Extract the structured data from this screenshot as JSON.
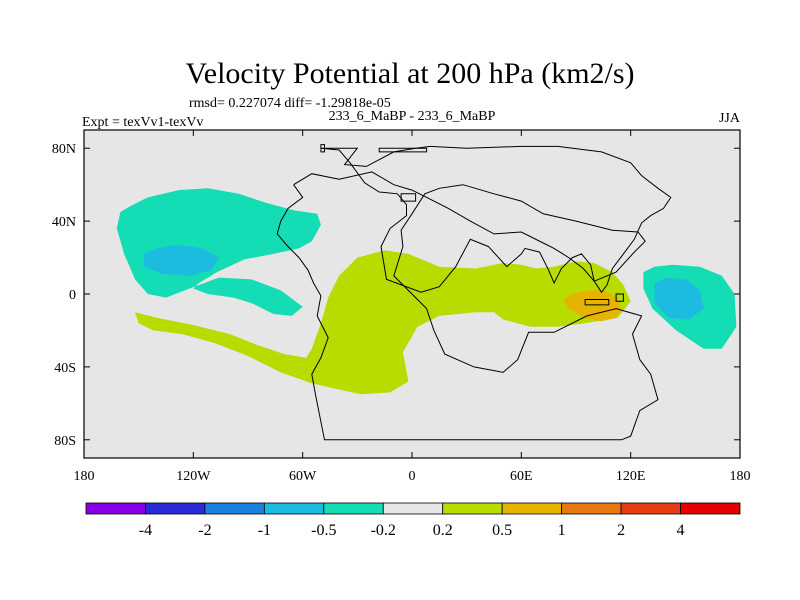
{
  "chart_data": {
    "type": "heatmap",
    "title": "Velocity Potential at 200 hPa (km2/s)",
    "stats_line": "rmsd= 0.227074 diff= -1.29818e-05",
    "left_label": "Expt = texVv1-texVv",
    "center_label": "233_6_MaBP - 233_6_MaBP",
    "right_label": "JJA",
    "x_ticks": [
      {
        "lon": -180,
        "label": "180"
      },
      {
        "lon": -120,
        "label": "120W"
      },
      {
        "lon": -60,
        "label": "60W"
      },
      {
        "lon": 0,
        "label": "0"
      },
      {
        "lon": 60,
        "label": "60E"
      },
      {
        "lon": 120,
        "label": "120E"
      },
      {
        "lon": 180,
        "label": "180"
      }
    ],
    "y_ticks": [
      {
        "lat": 80,
        "label": "80N"
      },
      {
        "lat": 40,
        "label": "40N"
      },
      {
        "lat": 0,
        "label": "0"
      },
      {
        "lat": -40,
        "label": "40S"
      },
      {
        "lat": -80,
        "label": "80S"
      }
    ],
    "xlim": [
      -180,
      180
    ],
    "ylim": [
      -90,
      90
    ],
    "background_color": "#e6e6e6",
    "contour_levels": [
      "-4",
      "-2",
      "-1",
      "-0.5",
      "-0.2",
      "0.2",
      "0.5",
      "1",
      "2",
      "4"
    ],
    "colorbar_colors": [
      "#8a00e6",
      "#2a2ad6",
      "#1c80e0",
      "#1cbce0",
      "#14dcb4",
      "#e6e6e6",
      "#b8dc00",
      "#e6b400",
      "#e67814",
      "#e63c14",
      "#e60000"
    ],
    "regions": [
      {
        "name": "positive-band-main",
        "value_range": "0.2 to 0.5",
        "color": "#b8dc00",
        "points": [
          [
            -152,
            -10
          ],
          [
            -140,
            -13
          ],
          [
            -120,
            -17
          ],
          [
            -100,
            -22
          ],
          [
            -85,
            -28
          ],
          [
            -70,
            -33
          ],
          [
            -58,
            -35
          ],
          [
            -55,
            -30
          ],
          [
            -50,
            -16
          ],
          [
            -46,
            -2
          ],
          [
            -40,
            10
          ],
          [
            -30,
            20
          ],
          [
            -15,
            24
          ],
          [
            -2,
            22
          ],
          [
            15,
            15
          ],
          [
            35,
            14
          ],
          [
            50,
            17
          ],
          [
            60,
            16
          ],
          [
            68,
            14
          ],
          [
            78,
            15
          ],
          [
            90,
            18
          ],
          [
            100,
            17
          ],
          [
            110,
            12
          ],
          [
            116,
            5
          ],
          [
            120,
            -4
          ],
          [
            113,
            -13
          ],
          [
            95,
            -16
          ],
          [
            80,
            -18
          ],
          [
            65,
            -18
          ],
          [
            50,
            -14
          ],
          [
            45,
            -10
          ],
          [
            35,
            -10
          ],
          [
            15,
            -12
          ],
          [
            3,
            -18
          ],
          [
            -5,
            -32
          ],
          [
            -2,
            -48
          ],
          [
            -12,
            -54
          ],
          [
            -28,
            -55
          ],
          [
            -42,
            -52
          ],
          [
            -55,
            -49
          ],
          [
            -72,
            -43
          ],
          [
            -90,
            -34
          ],
          [
            -108,
            -27
          ],
          [
            -126,
            -22
          ],
          [
            -142,
            -20
          ],
          [
            -150,
            -16
          ]
        ]
      },
      {
        "name": "positive-core-east",
        "value_range": "0.5 to 1",
        "color": "#e6b400",
        "points": [
          [
            83,
            -3
          ],
          [
            88,
            0
          ],
          [
            96,
            2
          ],
          [
            105,
            2
          ],
          [
            113,
            -2
          ],
          [
            115,
            -8
          ],
          [
            112,
            -13
          ],
          [
            104,
            -15
          ],
          [
            94,
            -13
          ],
          [
            86,
            -8
          ]
        ]
      },
      {
        "name": "negative-region-west",
        "value_range": "-0.5 to -0.2",
        "color": "#14dcb4",
        "points": [
          [
            -155,
            48
          ],
          [
            -145,
            53
          ],
          [
            -128,
            57
          ],
          [
            -112,
            58
          ],
          [
            -95,
            55
          ],
          [
            -80,
            50
          ],
          [
            -65,
            46
          ],
          [
            -52,
            44
          ],
          [
            -50,
            38
          ],
          [
            -55,
            29
          ],
          [
            -62,
            25
          ],
          [
            -76,
            22
          ],
          [
            -92,
            19
          ],
          [
            -107,
            12
          ],
          [
            -117,
            6
          ],
          [
            -120,
            3
          ],
          [
            -112,
            0
          ],
          [
            -98,
            -2
          ],
          [
            -88,
            -5
          ],
          [
            -76,
            -11
          ],
          [
            -66,
            -12
          ],
          [
            -60,
            -7
          ],
          [
            -72,
            2
          ],
          [
            -88,
            8
          ],
          [
            -106,
            9
          ],
          [
            -122,
            3
          ],
          [
            -135,
            -2
          ],
          [
            -145,
            0
          ],
          [
            -152,
            8
          ],
          [
            -158,
            22
          ],
          [
            -162,
            36
          ],
          [
            -160,
            45
          ]
        ]
      },
      {
        "name": "negative-core-west",
        "value_range": "-1 to -0.5",
        "color": "#1cbce0",
        "points": [
          [
            -147,
            22
          ],
          [
            -140,
            25
          ],
          [
            -128,
            27
          ],
          [
            -115,
            25
          ],
          [
            -106,
            20
          ],
          [
            -110,
            13
          ],
          [
            -122,
            10
          ],
          [
            -137,
            11
          ],
          [
            -147,
            15
          ]
        ]
      },
      {
        "name": "negative-region-east",
        "value_range": "-0.5 to -0.2",
        "color": "#14dcb4",
        "points": [
          [
            127,
            12
          ],
          [
            133,
            15
          ],
          [
            143,
            16
          ],
          [
            158,
            15
          ],
          [
            170,
            10
          ],
          [
            177,
            0
          ],
          [
            178,
            -18
          ],
          [
            170,
            -30
          ],
          [
            160,
            -30
          ],
          [
            145,
            -20
          ],
          [
            132,
            -8
          ],
          [
            127,
            3
          ]
        ]
      },
      {
        "name": "negative-core-east",
        "value_range": "-1 to -0.5",
        "color": "#1cbce0",
        "points": [
          [
            133,
            6
          ],
          [
            140,
            9
          ],
          [
            150,
            8
          ],
          [
            158,
            2
          ],
          [
            160,
            -8
          ],
          [
            152,
            -14
          ],
          [
            141,
            -13
          ],
          [
            133,
            -5
          ]
        ]
      }
    ],
    "continent_outline": [
      [
        -50,
        80
      ],
      [
        -40,
        79
      ],
      [
        -34,
        72
      ],
      [
        -26,
        61
      ],
      [
        -18,
        56
      ],
      [
        -8,
        55
      ],
      [
        -3,
        49
      ],
      [
        -3,
        43
      ],
      [
        -12,
        36
      ],
      [
        -17,
        26
      ],
      [
        -14,
        8
      ],
      [
        5,
        1
      ],
      [
        15,
        4
      ],
      [
        24,
        15
      ],
      [
        32,
        30
      ],
      [
        42,
        26
      ],
      [
        52,
        15
      ],
      [
        60,
        22
      ],
      [
        62,
        25
      ],
      [
        70,
        23
      ],
      [
        75,
        13
      ],
      [
        78,
        6
      ],
      [
        82,
        14
      ],
      [
        88,
        20
      ],
      [
        93,
        22
      ],
      [
        98,
        16
      ],
      [
        100,
        7
      ],
      [
        104,
        1
      ],
      [
        107,
        5
      ],
      [
        110,
        14
      ],
      [
        116,
        22
      ],
      [
        122,
        30
      ],
      [
        126,
        39
      ],
      [
        131,
        43
      ],
      [
        138,
        47
      ],
      [
        142,
        53
      ],
      [
        135,
        58
      ],
      [
        126,
        65
      ],
      [
        120,
        72
      ],
      [
        104,
        78
      ],
      [
        80,
        81
      ],
      [
        60,
        81
      ],
      [
        30,
        80
      ],
      [
        10,
        81
      ],
      [
        2,
        80
      ],
      [
        -10,
        78
      ],
      [
        -25,
        70
      ],
      [
        -37,
        71
      ],
      [
        -30,
        80
      ],
      [
        -50,
        80
      ]
    ],
    "continent_outline_2": [
      [
        -65,
        60
      ],
      [
        -60,
        53
      ],
      [
        -68,
        47
      ],
      [
        -72,
        40
      ],
      [
        -74,
        33
      ],
      [
        -68,
        26
      ],
      [
        -62,
        20
      ],
      [
        -57,
        13
      ],
      [
        -54,
        6
      ],
      [
        -50,
        -1
      ],
      [
        -52,
        -12
      ],
      [
        -46,
        -24
      ],
      [
        -50,
        -35
      ],
      [
        -55,
        -44
      ],
      [
        -53,
        -55
      ],
      [
        -48,
        -80
      ],
      [
        20,
        -80
      ],
      [
        40,
        -80
      ],
      [
        115,
        -80
      ],
      [
        120,
        -78
      ],
      [
        125,
        -64
      ],
      [
        135,
        -58
      ],
      [
        131,
        -44
      ],
      [
        125,
        -36
      ],
      [
        121,
        -22
      ],
      [
        126,
        -12
      ],
      [
        112,
        -8
      ],
      [
        96,
        -12
      ],
      [
        78,
        -21
      ],
      [
        64,
        -21
      ],
      [
        58,
        -36
      ],
      [
        50,
        -43
      ],
      [
        34,
        -40
      ],
      [
        18,
        -33
      ],
      [
        12,
        -20
      ],
      [
        8,
        -8
      ],
      [
        0,
        0
      ],
      [
        -10,
        10
      ],
      [
        -5,
        26
      ],
      [
        -6,
        35
      ],
      [
        0,
        44
      ],
      [
        7,
        55
      ],
      [
        15,
        58
      ],
      [
        28,
        60
      ],
      [
        45,
        55
      ],
      [
        60,
        51
      ],
      [
        72,
        44
      ],
      [
        90,
        40
      ],
      [
        110,
        35
      ],
      [
        124,
        34
      ],
      [
        128,
        29
      ],
      [
        122,
        23
      ],
      [
        112,
        12
      ],
      [
        100,
        7
      ],
      [
        94,
        14
      ],
      [
        86,
        20
      ],
      [
        78,
        25
      ],
      [
        72,
        28
      ],
      [
        60,
        34
      ],
      [
        45,
        33
      ],
      [
        32,
        40
      ],
      [
        20,
        47
      ],
      [
        10,
        52
      ],
      [
        0,
        57
      ],
      [
        -10,
        60
      ],
      [
        -22,
        67
      ],
      [
        -40,
        63
      ],
      [
        -55,
        66
      ],
      [
        -65,
        60
      ]
    ],
    "isolated_islands": [
      [
        [
          -50,
          82
        ],
        [
          -48,
          82
        ],
        [
          -48,
          78
        ],
        [
          -50,
          78
        ]
      ],
      [
        [
          -18,
          80
        ],
        [
          8,
          80
        ],
        [
          8,
          78
        ],
        [
          -18,
          78
        ]
      ],
      [
        [
          -6,
          55
        ],
        [
          2,
          55
        ],
        [
          2,
          51
        ],
        [
          -6,
          51
        ]
      ],
      [
        [
          95,
          -3
        ],
        [
          108,
          -3
        ],
        [
          108,
          -6
        ],
        [
          95,
          -6
        ]
      ],
      [
        [
          112,
          0
        ],
        [
          116,
          0
        ],
        [
          116,
          -4
        ],
        [
          112,
          -4
        ]
      ]
    ]
  }
}
